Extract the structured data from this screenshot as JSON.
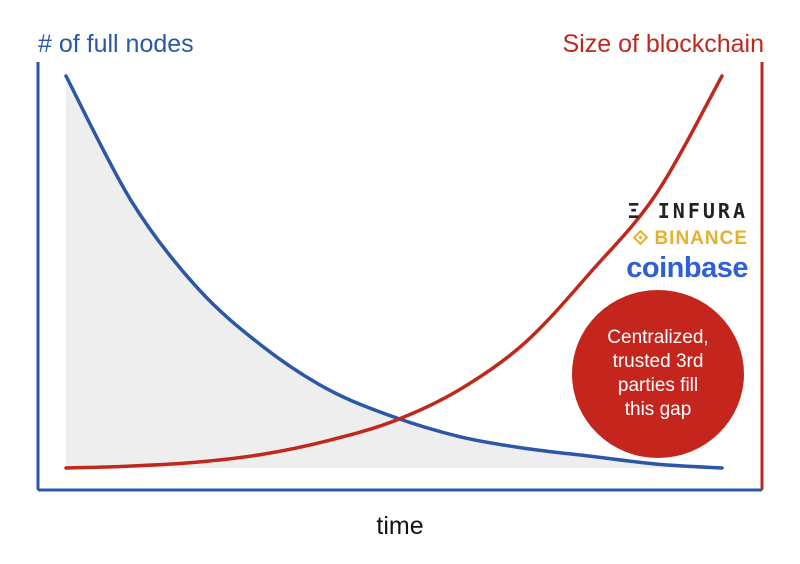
{
  "chart_data": {
    "type": "line",
    "xlabel": "time",
    "ylabel_left": "# of full nodes",
    "ylabel_right": "Size of blockchain",
    "grid": false,
    "x": [
      0,
      0.1,
      0.2,
      0.3,
      0.4,
      0.5,
      0.6,
      0.7,
      0.8,
      0.9,
      1.0
    ],
    "series": [
      {
        "name": "# of full nodes",
        "color": "#2b57a6",
        "area_fill": "#eeeeee",
        "values": [
          1.0,
          0.68,
          0.46,
          0.31,
          0.2,
          0.13,
          0.08,
          0.05,
          0.03,
          0.01,
          0.0
        ]
      },
      {
        "name": "Size of blockchain",
        "color": "#c0281e",
        "values": [
          0.0,
          0.005,
          0.015,
          0.035,
          0.07,
          0.12,
          0.2,
          0.32,
          0.5,
          0.7,
          1.0
        ]
      }
    ],
    "ylim": [
      0,
      1
    ],
    "xlim": [
      0,
      1
    ]
  },
  "annotations": {
    "logos": [
      {
        "name": "infura",
        "text": "INFURA",
        "color": "#222222"
      },
      {
        "name": "binance",
        "text": "BINANCE",
        "color": "#e3b030"
      },
      {
        "name": "coinbase",
        "text": "coinbase",
        "color": "#2e5fd6"
      }
    ],
    "callout": {
      "text": "Centralized,\ntrusted 3rd\nparties fill\nthis gap",
      "color": "#c4261d"
    }
  },
  "colors": {
    "left_axis": "#2b57a6",
    "right_axis": "#c0281e",
    "bottom_axis": "#2b57a6"
  }
}
